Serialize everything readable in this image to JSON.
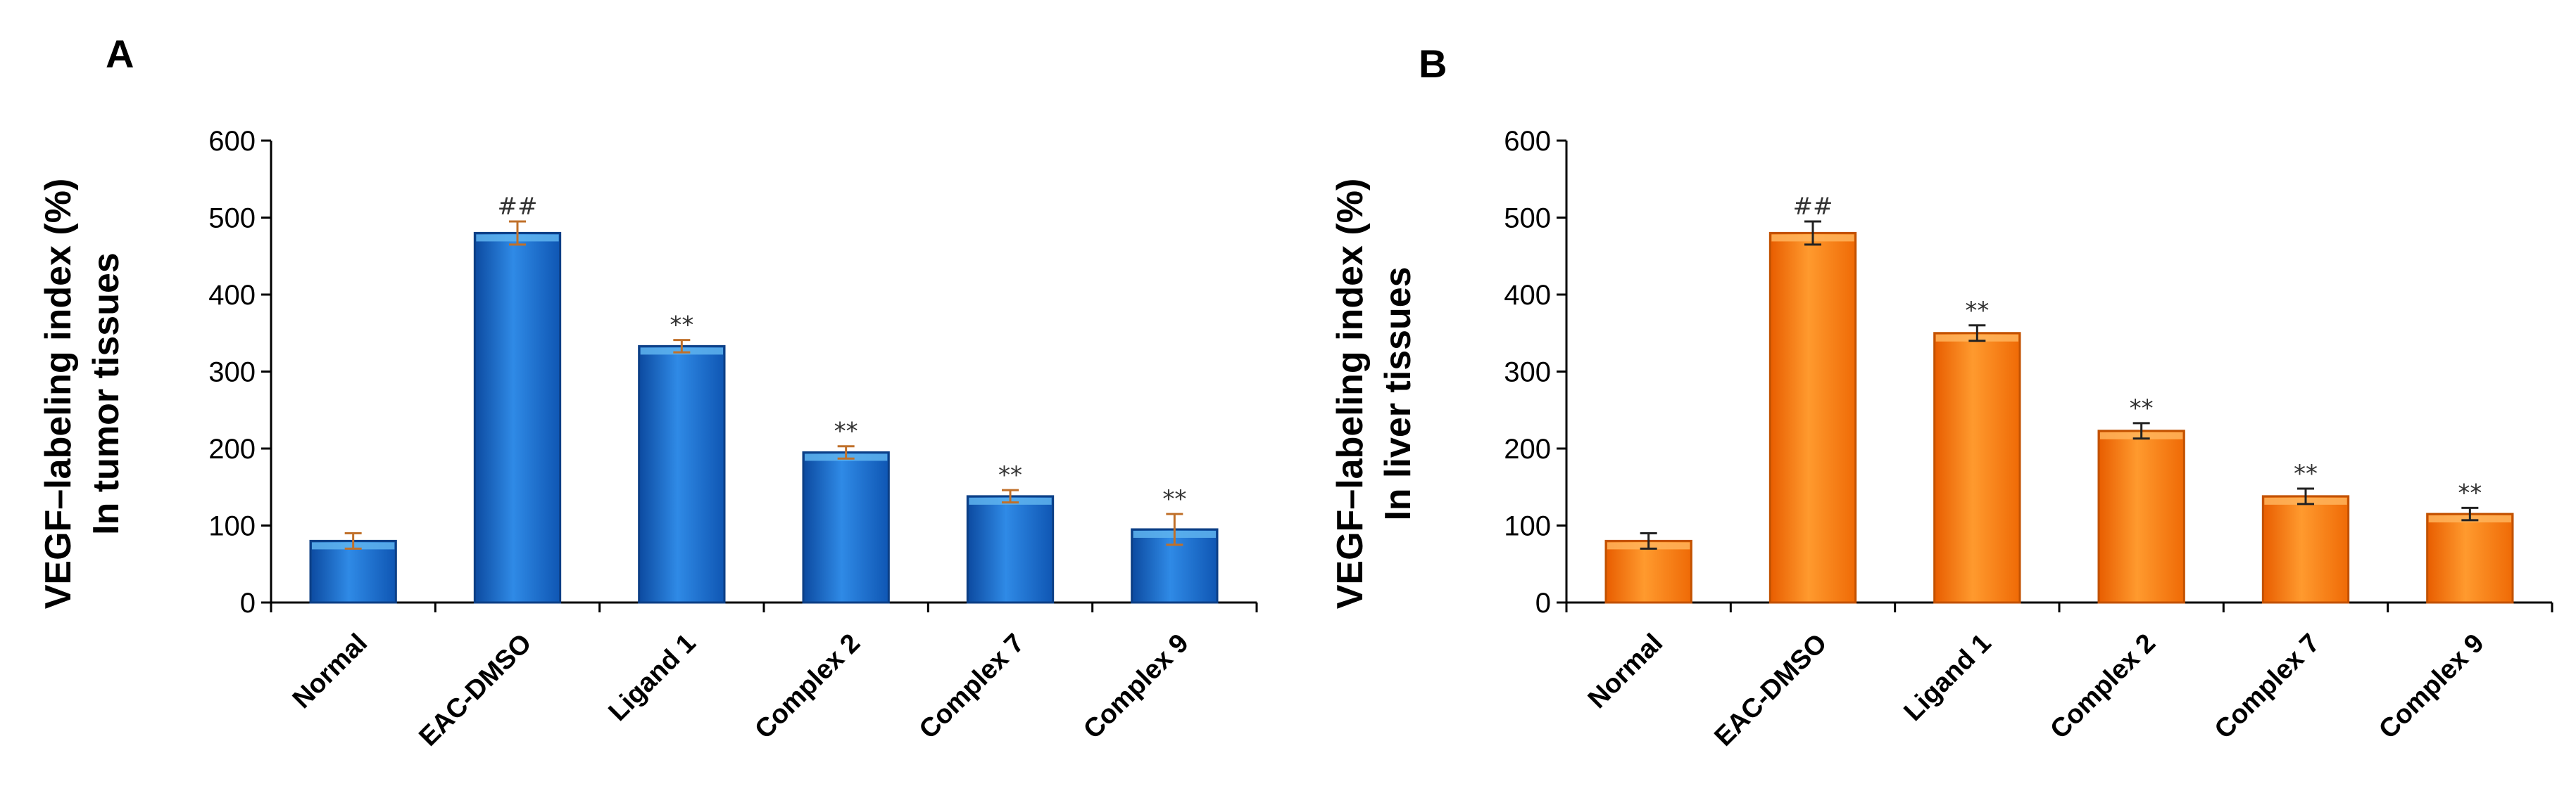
{
  "chart_data": [
    {
      "type": "bar",
      "panel": "A",
      "ylabel_line1": "VEGF–labeling index (%)",
      "ylabel_line2": "In tumor tissues",
      "categories": [
        "Normal",
        "EAC-DMSO",
        "Ligand 1",
        "Complex 2",
        "Complex 7",
        "Complex 9"
      ],
      "values": [
        80,
        480,
        333,
        195,
        138,
        95
      ],
      "errors": [
        10,
        15,
        8,
        8,
        8,
        20
      ],
      "significance": [
        "",
        "##",
        "**",
        "**",
        "**",
        "**"
      ],
      "ylim": [
        0,
        600
      ],
      "yticks": [
        0,
        100,
        200,
        300,
        400,
        500,
        600
      ],
      "colors": {
        "light": "#5fb4ee",
        "main": "#1f73d3",
        "dark": "#0c3f86",
        "error": "#c0702a"
      }
    },
    {
      "type": "bar",
      "panel": "B",
      "ylabel_line1": "VEGF–labeling index (%)",
      "ylabel_line2": "In liver tissues",
      "categories": [
        "Normal",
        "EAC-DMSO",
        "Ligand 1",
        "Complex 2",
        "Complex 7",
        "Complex 9"
      ],
      "values": [
        80,
        480,
        350,
        223,
        138,
        115
      ],
      "errors": [
        10,
        15,
        10,
        10,
        10,
        8
      ],
      "significance": [
        "",
        "##",
        "**",
        "**",
        "**",
        "**"
      ],
      "ylim": [
        0,
        600
      ],
      "yticks": [
        0,
        100,
        200,
        300,
        400,
        500,
        600
      ],
      "colors": {
        "light": "#ffb45c",
        "main": "#ff7f0a",
        "dark": "#c25100",
        "error": "#222222"
      }
    }
  ]
}
